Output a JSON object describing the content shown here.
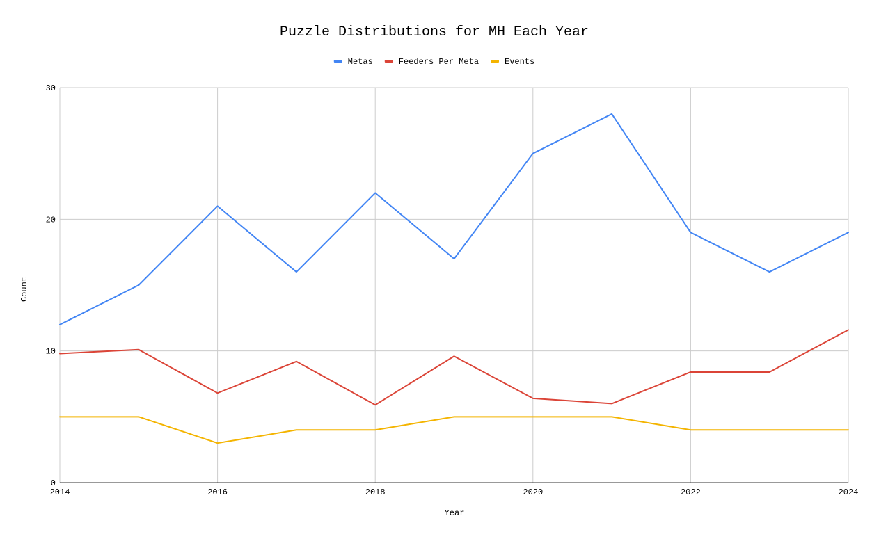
{
  "chart_data": {
    "type": "line",
    "title": "Puzzle Distributions for MH Each Year",
    "xlabel": "Year",
    "ylabel": "Count",
    "x": [
      2014,
      2015,
      2016,
      2017,
      2018,
      2019,
      2020,
      2021,
      2022,
      2023,
      2024
    ],
    "xlim": [
      2014,
      2024
    ],
    "ylim": [
      0,
      30
    ],
    "x_ticks": [
      2014,
      2016,
      2018,
      2020,
      2022,
      2024
    ],
    "y_ticks": [
      0,
      10,
      20,
      30
    ],
    "x_tick_labels": [
      "2014",
      "2016",
      "2018",
      "2020",
      "2022",
      "2024"
    ],
    "y_tick_labels": [
      "0",
      "10",
      "20",
      "30"
    ],
    "grid": true,
    "legend_position": "top-center",
    "series": [
      {
        "name": "Metas",
        "color": "#4285f4",
        "values": [
          12,
          15,
          21,
          16,
          22,
          17,
          25,
          28,
          19,
          16,
          19
        ]
      },
      {
        "name": "Feeders Per Meta",
        "color": "#db4437",
        "values": [
          9.8,
          10.1,
          6.8,
          9.2,
          5.9,
          9.6,
          6.4,
          6.0,
          8.4,
          8.4,
          11.6
        ]
      },
      {
        "name": "Events",
        "color": "#f4b400",
        "values": [
          5,
          5,
          3,
          4,
          4,
          5,
          5,
          5,
          4,
          4,
          4
        ]
      }
    ]
  }
}
